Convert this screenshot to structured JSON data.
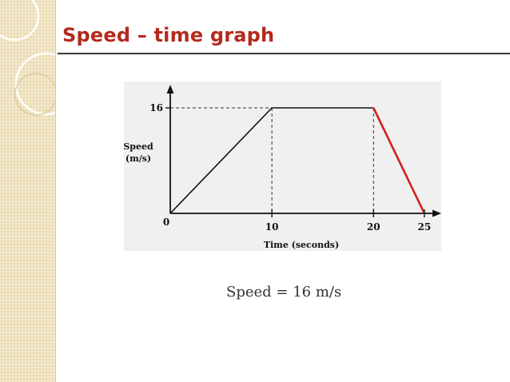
{
  "slide": {
    "title": "Speed – time graph",
    "title_color": "#b32a1d",
    "caption": "Speed = 16 m/s"
  },
  "chart_data": {
    "type": "line",
    "xlabel": "Time (seconds)",
    "ylabel": "Speed (m/s)",
    "ylabel_lines": [
      "Speed",
      "(m/s)"
    ],
    "origin_label": "0",
    "x_ticks": [
      10,
      20,
      25
    ],
    "y_ticks": [
      16
    ],
    "xlim": [
      0,
      28
    ],
    "ylim": [
      0,
      19
    ],
    "grid": false,
    "reference_lines": "dashed",
    "series": [
      {
        "points": [
          [
            0,
            0
          ],
          [
            10,
            16
          ],
          [
            20,
            16
          ]
        ],
        "color": "#111111"
      },
      {
        "points": [
          [
            20,
            16
          ],
          [
            25,
            0
          ]
        ],
        "color": "#d42020"
      }
    ]
  }
}
